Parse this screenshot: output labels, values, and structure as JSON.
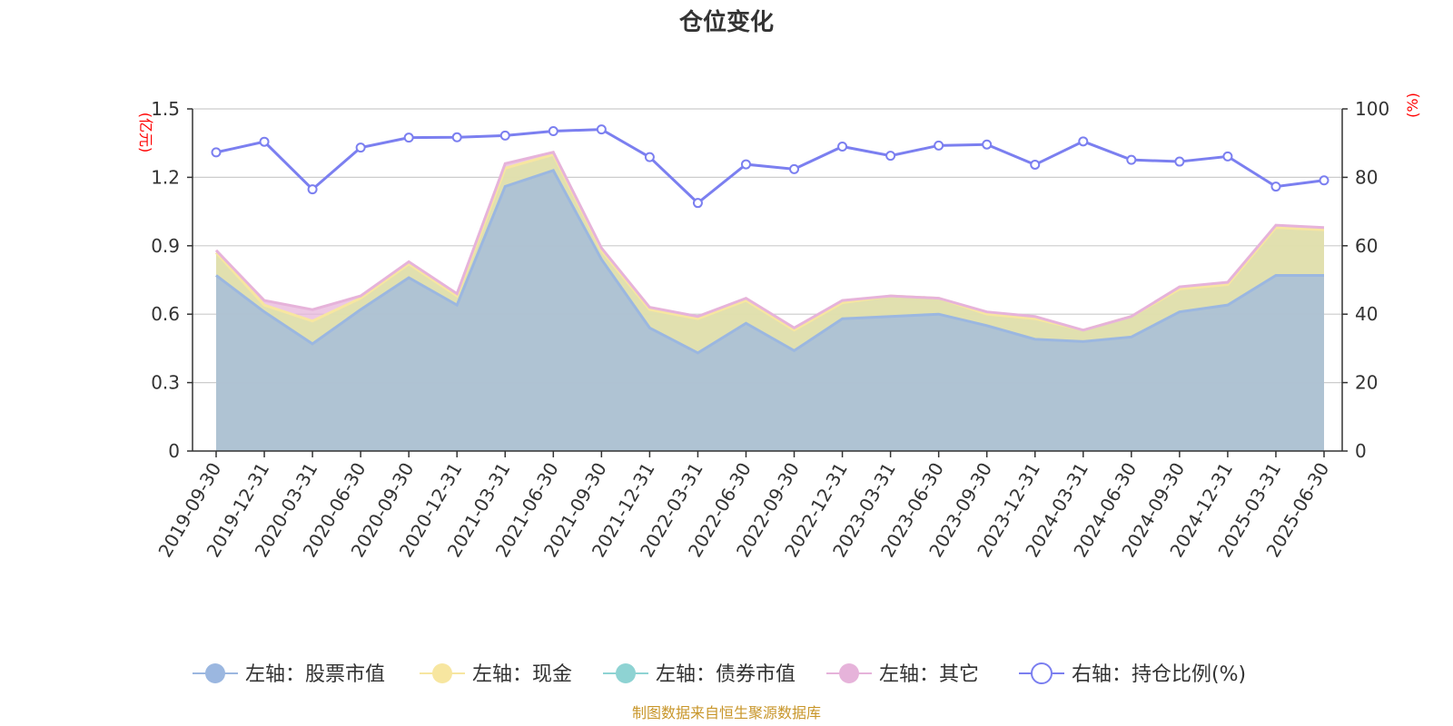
{
  "title": "仓位变化",
  "source": "制图数据来自恒生聚源数据库",
  "colors": {
    "stock": "#9bb7e0",
    "cash": "#f7e6a0",
    "bond": "#8ed3d3",
    "other": "#e6b3da",
    "ratio": "#7b7ff0"
  },
  "chart_data": {
    "type": "area",
    "title": "仓位变化",
    "categories": [
      "2019-09-30",
      "2019-12-31",
      "2020-03-31",
      "2020-06-30",
      "2020-09-30",
      "2020-12-31",
      "2021-03-31",
      "2021-06-30",
      "2021-09-30",
      "2021-12-31",
      "2022-03-31",
      "2022-06-30",
      "2022-09-30",
      "2022-12-31",
      "2023-03-31",
      "2023-06-30",
      "2023-09-30",
      "2023-12-31",
      "2024-03-31",
      "2024-06-30",
      "2024-09-30",
      "2024-12-31",
      "2025-03-31",
      "2025-06-30"
    ],
    "y_left": {
      "unit": "(亿元)",
      "range": [
        0,
        1.5
      ],
      "ticks": [
        "0",
        "0.3",
        "0.6",
        "0.9",
        "1.2",
        "1.5"
      ]
    },
    "y_right": {
      "unit": "(%)",
      "range": [
        0,
        100
      ],
      "ticks": [
        "0",
        "20",
        "40",
        "60",
        "80",
        "100"
      ]
    },
    "grid": true,
    "legend_position": "bottom",
    "series": [
      {
        "name": "左轴：股票市值",
        "axis": "left",
        "stacked": true,
        "values": [
          0.77,
          0.61,
          0.47,
          0.62,
          0.76,
          0.64,
          1.16,
          1.23,
          0.84,
          0.54,
          0.43,
          0.56,
          0.44,
          0.58,
          0.59,
          0.6,
          0.55,
          0.49,
          0.48,
          0.5,
          0.61,
          0.64,
          0.77,
          0.77
        ]
      },
      {
        "name": "左轴：现金",
        "axis": "left",
        "stacked": true,
        "values": [
          0.1,
          0.03,
          0.1,
          0.05,
          0.06,
          0.04,
          0.08,
          0.07,
          0.04,
          0.08,
          0.15,
          0.1,
          0.09,
          0.07,
          0.09,
          0.07,
          0.05,
          0.09,
          0.05,
          0.09,
          0.1,
          0.09,
          0.21,
          0.2
        ]
      },
      {
        "name": "左轴：债券市值",
        "axis": "left",
        "stacked": true,
        "values": [
          0,
          0,
          0,
          0,
          0,
          0,
          0,
          0,
          0,
          0,
          0,
          0,
          0,
          0,
          0,
          0,
          0,
          0,
          0,
          0,
          0,
          0,
          0,
          0
        ]
      },
      {
        "name": "左轴：其它",
        "axis": "left",
        "stacked": true,
        "values": [
          0.01,
          0.02,
          0.05,
          0.01,
          0.01,
          0.01,
          0.02,
          0.01,
          0.01,
          0.01,
          0.01,
          0.01,
          0.01,
          0.01,
          0.0,
          0.0,
          0.01,
          0.01,
          0.0,
          0.0,
          0.01,
          0.01,
          0.01,
          0.01
        ]
      },
      {
        "name": "右轴：持仓比例(%)",
        "axis": "right",
        "values": [
          87.3,
          90.4,
          76.5,
          88.7,
          91.6,
          91.7,
          92.2,
          93.5,
          94.0,
          85.9,
          72.5,
          83.8,
          82.4,
          89.0,
          86.3,
          89.3,
          89.6,
          83.7,
          90.5,
          85.1,
          84.6,
          86.1,
          77.3,
          79.1
        ]
      }
    ]
  }
}
